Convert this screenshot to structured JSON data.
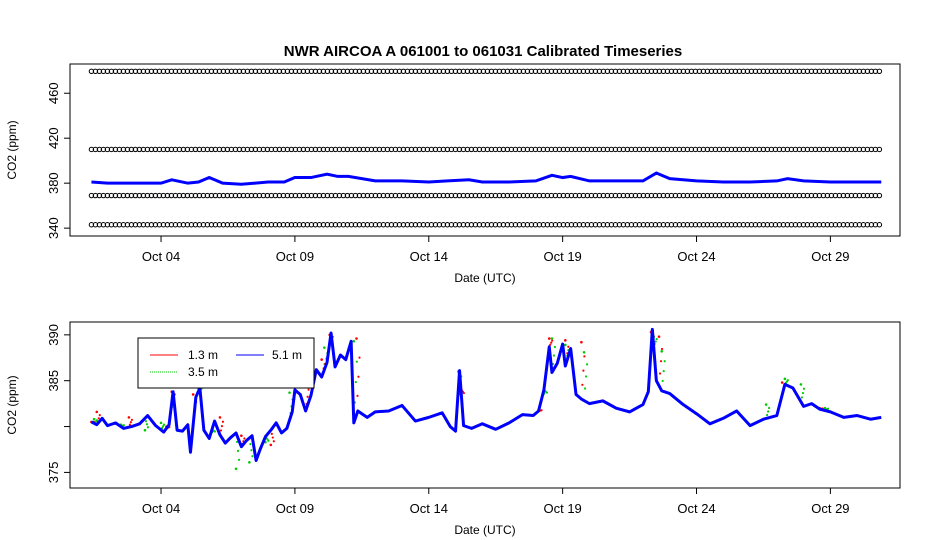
{
  "colors": {
    "red": "#ff0000",
    "green": "#00cd00",
    "blue": "#0000ff",
    "black": "#000000"
  },
  "chart_data": [
    {
      "type": "scatter",
      "title": "NWR   AIRCOA  A   061001  to  061031   Calibrated Timeseries",
      "xlabel": "Date (UTC)",
      "ylabel": "CO2 (ppm)",
      "x_unit": "days since Oct 01",
      "xlim": [
        -0.4,
        30.6
      ],
      "ylim": [
        333,
        486
      ],
      "xticks": [
        {
          "value": 3,
          "label": "Oct 04"
        },
        {
          "value": 8,
          "label": "Oct 09"
        },
        {
          "value": 13,
          "label": "Oct 14"
        },
        {
          "value": 18,
          "label": "Oct 19"
        },
        {
          "value": 23,
          "label": "Oct 24"
        },
        {
          "value": 28,
          "label": "Oct 29"
        }
      ],
      "yticks": [
        340,
        380,
        420,
        460
      ],
      "grid": false,
      "x_range": [
        0.4,
        29.9
      ],
      "calibration_levels": [
        {
          "name": "standard-high",
          "y": 479.5
        },
        {
          "name": "standard-mid",
          "y": 410
        },
        {
          "name": "standard-low",
          "y": 369
        },
        {
          "name": "standard-lowest",
          "y": 343
        }
      ],
      "series": [
        {
          "color": "blue",
          "x": [
            0.4,
            1,
            2,
            3,
            3.4,
            4,
            4.4,
            4.8,
            5.3,
            6,
            7,
            7.6,
            8,
            8.6,
            9.2,
            9.6,
            10,
            11,
            12,
            13,
            13.7,
            14.5,
            15,
            16,
            17,
            17.6,
            18,
            18.3,
            19,
            20,
            21,
            21.5,
            22,
            23,
            24,
            25,
            26,
            26.4,
            27,
            28,
            29,
            29.9
          ],
          "values": [
            381,
            380,
            380,
            380,
            383,
            380,
            381,
            385,
            380,
            379,
            381,
            381,
            385,
            385,
            388,
            386,
            386,
            382,
            382,
            381,
            382,
            383,
            381,
            381,
            382,
            387,
            385,
            386,
            382,
            382,
            382,
            389,
            384,
            382,
            381,
            381,
            382,
            384,
            382,
            381,
            381,
            381
          ]
        }
      ]
    },
    {
      "type": "line",
      "xlabel": "Date (UTC)",
      "ylabel": "CO2 (ppm)",
      "x_unit": "days since Oct 01",
      "xlim": [
        -0.4,
        30.6
      ],
      "ylim": [
        373.3,
        391.4
      ],
      "xticks": [
        {
          "value": 3,
          "label": "Oct 04"
        },
        {
          "value": 8,
          "label": "Oct 09"
        },
        {
          "value": 13,
          "label": "Oct 14"
        },
        {
          "value": 18,
          "label": "Oct 19"
        },
        {
          "value": 23,
          "label": "Oct 24"
        },
        {
          "value": 28,
          "label": "Oct 29"
        }
      ],
      "yticks": [
        375,
        380,
        385,
        390
      ],
      "ytick_labels": [
        "375",
        "",
        "385",
        "390"
      ],
      "grid": false,
      "legend": {
        "position": "top-left"
      },
      "series": [
        {
          "name": "1.3 m",
          "color": "red",
          "x": [
            0.4,
            0.6,
            1.2,
            1.8,
            3.2,
            3.4,
            4.2,
            4.4,
            5.2,
            6,
            7.1,
            7.9,
            8.4,
            9.0,
            9.3,
            10.3,
            14.2,
            17.1,
            17.5,
            18.1,
            18.7,
            21.3,
            21.6,
            26.2,
            27.6
          ],
          "values": [
            380.5,
            381.6,
            380.3,
            381,
            380,
            383.8,
            383.5,
            385.2,
            381,
            379,
            378,
            384.3,
            384.8,
            387.3,
            390.0,
            389.6,
            383.5,
            381.8,
            389.6,
            389.4,
            389.2,
            390.3,
            389.8,
            384.8,
            382
          ]
        },
        {
          "name": "3.5 m",
          "color": "green",
          "x": [
            0.5,
            1.5,
            2.4,
            3.0,
            3.4,
            4.4,
            4.9,
            5.8,
            6.3,
            6.9,
            7.8,
            8.6,
            9.1,
            10.2,
            14.1,
            17.3,
            17.6,
            18.1,
            18.8,
            21.4,
            21.7,
            25.6,
            26.3,
            26.9,
            27.8
          ],
          "values": [
            380.8,
            380.2,
            379.6,
            380.4,
            382.1,
            384.2,
            379.4,
            375.4,
            376.1,
            378.3,
            383.7,
            385.3,
            388.6,
            389.3,
            386.0,
            383.6,
            389.6,
            388.9,
            388.1,
            389.8,
            388.2,
            382.4,
            385.2,
            384.6,
            382.0
          ]
        },
        {
          "name": "5.1 m",
          "color": "blue",
          "x": [
            0.4,
            0.6,
            0.8,
            1.0,
            1.3,
            1.6,
            1.9,
            2.2,
            2.5,
            2.8,
            3.1,
            3.3,
            3.45,
            3.6,
            3.8,
            4.0,
            4.1,
            4.3,
            4.45,
            4.6,
            4.8,
            5.0,
            5.2,
            5.4,
            5.6,
            5.8,
            6.0,
            6.2,
            6.4,
            6.55,
            6.7,
            6.9,
            7.1,
            7.3,
            7.5,
            7.7,
            7.9,
            8.0,
            8.2,
            8.4,
            8.6,
            8.8,
            9.0,
            9.2,
            9.35,
            9.5,
            9.7,
            9.9,
            10.1,
            10.2,
            10.35,
            10.5,
            10.7,
            11.0,
            11.5,
            12.0,
            12.5,
            13.0,
            13.5,
            13.8,
            14.0,
            14.15,
            14.3,
            14.6,
            15.0,
            15.5,
            16.0,
            16.5,
            16.9,
            17.1,
            17.3,
            17.5,
            17.6,
            17.8,
            18.0,
            18.1,
            18.3,
            18.5,
            18.7,
            19.0,
            19.5,
            20.0,
            20.5,
            21.0,
            21.2,
            21.35,
            21.5,
            21.7,
            22.0,
            22.5,
            23.0,
            23.5,
            24.0,
            24.5,
            25.0,
            25.5,
            26.0,
            26.3,
            26.6,
            27.0,
            27.3,
            27.6,
            28.0,
            28.5,
            29.0,
            29.5,
            29.9
          ],
          "values": [
            380.5,
            380.2,
            380.9,
            380.1,
            380.4,
            379.8,
            380.0,
            380.3,
            381.2,
            380.1,
            379.4,
            380.2,
            383.8,
            379.6,
            379.5,
            380.2,
            377.2,
            383.2,
            384.2,
            379.6,
            378.7,
            380.6,
            379.1,
            378.2,
            378.8,
            379.3,
            377.8,
            378.5,
            379.0,
            376.3,
            377.5,
            378.9,
            379.6,
            380.4,
            379.3,
            379.8,
            381.6,
            384.0,
            383.5,
            381.7,
            383.4,
            386.2,
            385.4,
            387.0,
            390.2,
            386.5,
            387.8,
            387.3,
            389.3,
            380.4,
            381.7,
            381.4,
            381.0,
            381.6,
            381.7,
            382.3,
            380.6,
            381.0,
            381.5,
            380.0,
            379.5,
            386.1,
            380.1,
            379.8,
            380.3,
            379.7,
            380.4,
            381.3,
            381.2,
            381.7,
            384.0,
            388.7,
            385.9,
            386.9,
            389.0,
            386.6,
            388.5,
            383.5,
            383.0,
            382.5,
            382.8,
            382.0,
            381.6,
            382.4,
            383.8,
            390.6,
            385.0,
            383.9,
            383.6,
            382.4,
            381.4,
            380.3,
            380.9,
            381.7,
            380.1,
            380.8,
            381.2,
            384.6,
            384.2,
            382.2,
            382.5,
            381.9,
            381.6,
            381.0,
            381.2,
            380.8,
            381.0
          ]
        }
      ]
    }
  ]
}
